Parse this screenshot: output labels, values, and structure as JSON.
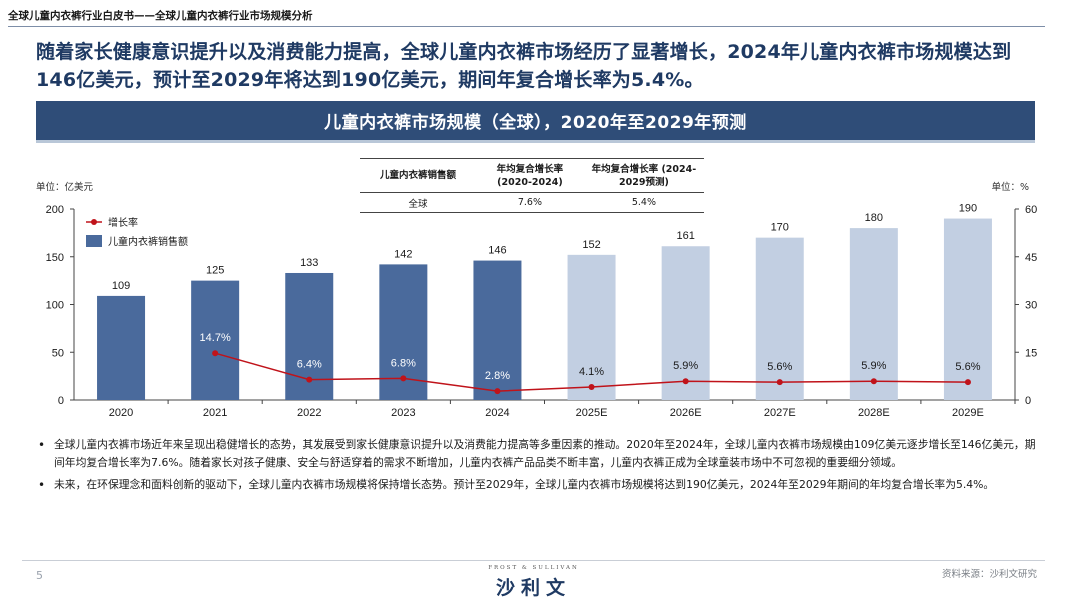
{
  "doc_title": "全球儿童内衣裤行业白皮书——全球儿童内衣裤行业市场规模分析",
  "headline": "随着家长健康意识提升以及消费能力提高，全球儿童内衣裤市场经历了显著增长，2024年儿童内衣裤市场规模达到146亿美元，预计至2029年将达到190亿美元，期间年复合增长率为5.4%。",
  "banner": "儿童内衣裤市场规模（全球），2020年至2029年预测",
  "unit_left": "单位：亿美元",
  "unit_right": "单位：%",
  "cagr_table": {
    "headers": [
      "儿童内衣裤销售额",
      "年均复合增长率 (2020-2024)",
      "年均复合增长率 (2024-2029预测)"
    ],
    "row": [
      "全球",
      "7.6%",
      "5.4%"
    ]
  },
  "colors": {
    "navy": "#2f4d78",
    "bar_actual": "#4a6a9c",
    "bar_forecast": "#c2cfe2",
    "line": "#c0131a"
  },
  "chart_data": {
    "type": "bar",
    "categories": [
      "2020",
      "2021",
      "2022",
      "2023",
      "2024",
      "2025E",
      "2026E",
      "2027E",
      "2028E",
      "2029E"
    ],
    "series": [
      {
        "name": "儿童内衣裤销售额",
        "type": "bar",
        "axis": "left",
        "values": [
          109,
          125,
          133,
          142,
          146,
          152,
          161,
          170,
          180,
          190
        ],
        "forecast_from_index": 5
      },
      {
        "name": "增长率",
        "type": "line",
        "axis": "right",
        "values": [
          null,
          14.7,
          6.4,
          6.8,
          2.8,
          4.1,
          5.9,
          5.6,
          5.9,
          5.6
        ],
        "labels": [
          "",
          "14.7%",
          "6.4%",
          "6.8%",
          "2.8%",
          "4.1%",
          "5.9%",
          "5.6%",
          "5.9%",
          "5.6%"
        ]
      }
    ],
    "y_left": {
      "min": 0,
      "max": 200,
      "ticks": [
        0,
        50,
        100,
        150,
        200
      ]
    },
    "y_right": {
      "min": 0,
      "max": 60,
      "ticks": [
        0,
        15,
        30,
        45,
        60
      ]
    },
    "legend": [
      "增长率",
      "儿童内衣裤销售额"
    ],
    "legend_position": "top-left"
  },
  "bullets": [
    "全球儿童内衣裤市场近年来呈现出稳健增长的态势，其发展受到家长健康意识提升以及消费能力提高等多重因素的推动。2020年至2024年，全球儿童内衣裤市场规模由109亿美元逐步增长至146亿美元，期间年均复合增长率为7.6%。随着家长对孩子健康、安全与舒适穿着的需求不断增加，儿童内衣裤产品品类不断丰富，儿童内衣裤正成为全球童装市场中不可忽视的重要细分领域。",
    "未来，在环保理念和面料创新的驱动下，全球儿童内衣裤市场规模将保持增长态势。预计至2029年，全球儿童内衣裤市场规模将达到190亿美元，2024年至2029年期间的年均复合增长率为5.4%。"
  ],
  "footer": {
    "page": "5",
    "logo_en": "FROST & SULLIVAN",
    "logo_cn": "沙利文",
    "source": "资料来源：沙利文研究"
  }
}
